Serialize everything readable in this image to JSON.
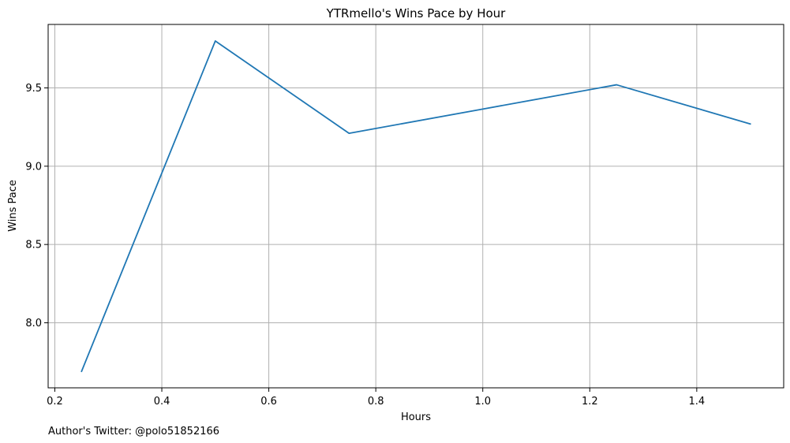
{
  "chart_data": {
    "type": "line",
    "title": "YTRmello's Wins Pace by Hour",
    "xlabel": "Hours",
    "ylabel": "Wins Pace",
    "footer": "Author's Twitter: @polo51852166",
    "x": [
      0.25,
      0.5,
      0.75,
      1.0,
      1.25,
      1.5
    ],
    "series": [
      {
        "values": [
          7.69,
          9.8,
          9.21,
          9.365,
          9.52,
          9.27
        ]
      }
    ],
    "xlim": [
      0.1875,
      1.5625
    ],
    "ylim": [
      7.5845,
      9.9055
    ],
    "xticks": [
      0.2,
      0.4,
      0.6,
      0.8,
      1.0,
      1.2,
      1.4
    ],
    "xtick_labels": [
      "0.2",
      "0.4",
      "0.6",
      "0.8",
      "1.0",
      "1.2",
      "1.4"
    ],
    "yticks": [
      8.0,
      8.5,
      9.0,
      9.5
    ],
    "ytick_labels": [
      "8.0",
      "8.5",
      "9.0",
      "9.5"
    ],
    "grid": true,
    "colors": {
      "line": "#1f77b4",
      "grid": "#b0b0b0"
    }
  }
}
